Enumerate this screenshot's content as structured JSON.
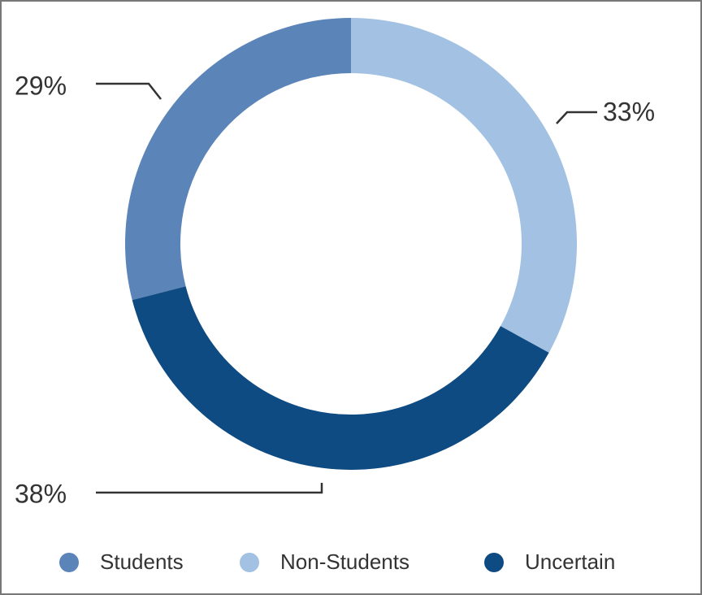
{
  "chart_data": {
    "type": "donut",
    "series": [
      {
        "name": "Students",
        "color": "#5b84b8",
        "values": [
          29
        ],
        "value_labels": [
          "29%"
        ]
      },
      {
        "name": "Non-Students",
        "color": "#a3c1e2",
        "values": [
          33
        ],
        "value_labels": [
          "33%"
        ]
      },
      {
        "name": "Uncertain",
        "color": "#0e4b82",
        "values": [
          38
        ],
        "value_labels": [
          "38%"
        ]
      }
    ]
  }
}
